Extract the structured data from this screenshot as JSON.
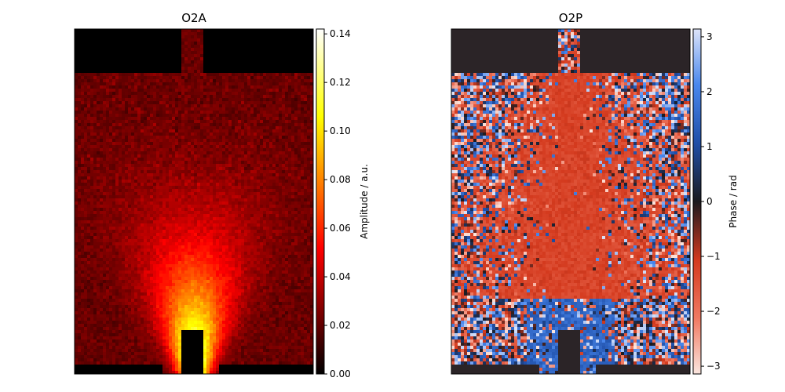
{
  "chart_data": [
    {
      "type": "heatmap",
      "title": "O2A",
      "colormap": "hot",
      "colorbar": {
        "label": "Amplitude / a.u.",
        "range": [
          0.0,
          0.142
        ],
        "ticks": [
          "0.00",
          "0.02",
          "0.04",
          "0.06",
          "0.08",
          "0.10",
          "0.12",
          "0.14"
        ],
        "tick_values": [
          0.0,
          0.02,
          0.04,
          0.06,
          0.08,
          0.1,
          0.12,
          0.14
        ]
      },
      "axes_visible": false,
      "grid": false,
      "description_values": {
        "background_level": 0.02,
        "peak_level": 0.142
      }
    },
    {
      "type": "heatmap",
      "title": "O2P",
      "colormap": "diverging (red-black-blue)",
      "colorbar": {
        "label": "Phase / rad",
        "range": [
          -3.1416,
          3.1416
        ],
        "ticks": [
          "−3",
          "−2",
          "−1",
          "0",
          "1",
          "2",
          "3"
        ],
        "tick_values": [
          -3,
          -2,
          -1,
          0,
          1,
          2,
          3
        ]
      },
      "axes_visible": false,
      "grid": false
    }
  ]
}
